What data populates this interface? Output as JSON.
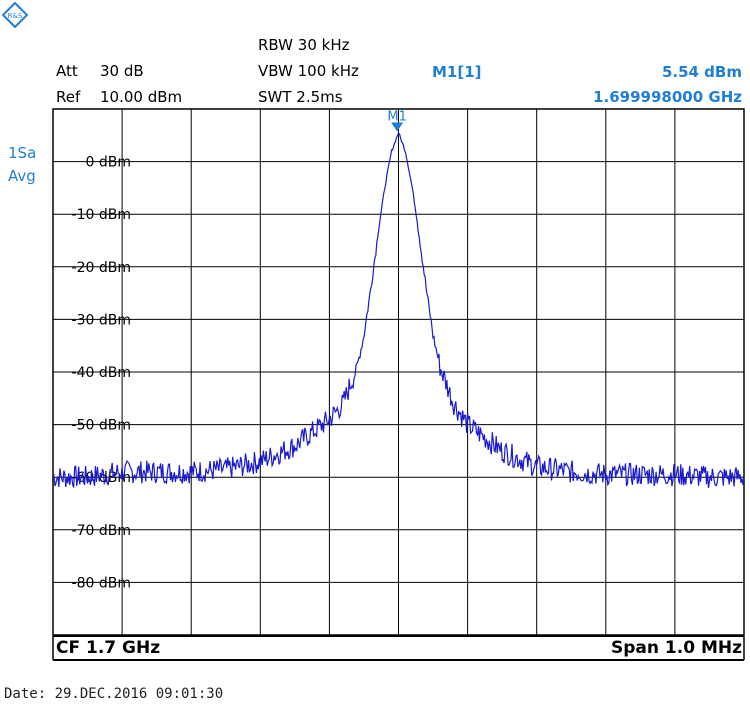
{
  "instrument": {
    "logo_text": "R&S",
    "accent_color": "#1f7fd6",
    "trace_color": "#1a1ad0"
  },
  "header": {
    "att_label": "Att",
    "att_value": "30 dB",
    "ref_label": "Ref",
    "ref_value": "10.00 dBm",
    "rbw": "RBW 30 kHz",
    "vbw": "VBW 100 kHz",
    "swt": "SWT 2.5ms",
    "marker_name": "M1[1]",
    "marker_level": "5.54 dBm",
    "marker_freq": "1.699998000 GHz"
  },
  "trace_info": {
    "line1": "1Sa",
    "line2": "Avg"
  },
  "footer": {
    "cf": "CF 1.7 GHz",
    "span": "Span 1.0 MHz",
    "date": "Date: 29.DEC.2016  09:01:30"
  },
  "chart_data": {
    "type": "line",
    "x_unit": "MHz",
    "xlim": [
      1699.5,
      1700.5
    ],
    "ylim": [
      -90,
      10
    ],
    "grid": true,
    "divisions": {
      "x": 10,
      "y": 10
    },
    "y_tick_labels": [
      "0 dBm",
      "-10 dBm",
      "-20 dBm",
      "-30 dBm",
      "-40 dBm",
      "-50 dBm",
      "-60 dBm",
      "-70 dBm",
      "-80 dBm"
    ],
    "y_tick_values": [
      0,
      -10,
      -20,
      -30,
      -40,
      -50,
      -60,
      -70,
      -80
    ],
    "marker": {
      "label": "M1",
      "x": 1699.998,
      "y": 5.54
    },
    "series": [
      {
        "x": [
          1699.5,
          1699.55,
          1699.6,
          1699.65,
          1699.7,
          1699.75,
          1699.8,
          1699.85,
          1699.88,
          1699.9,
          1699.92,
          1699.94,
          1699.95,
          1699.96,
          1699.97,
          1699.98,
          1699.99,
          1700.0,
          1700.01,
          1700.02,
          1700.03,
          1700.04,
          1700.05,
          1700.06,
          1700.08,
          1700.1,
          1700.12,
          1700.15,
          1700.2,
          1700.25,
          1700.3,
          1700.35,
          1700.4,
          1700.45,
          1700.5
        ],
        "values": [
          -60,
          -60,
          -59,
          -59,
          -59,
          -58.5,
          -57,
          -54,
          -51,
          -49,
          -46,
          -39,
          -33,
          -24,
          -14,
          -5,
          2,
          5.5,
          2,
          -5,
          -14,
          -24,
          -33,
          -39,
          -46,
          -50,
          -52,
          -55,
          -58,
          -59,
          -59.5,
          -59.5,
          -59.5,
          -60,
          -60
        ]
      }
    ]
  }
}
